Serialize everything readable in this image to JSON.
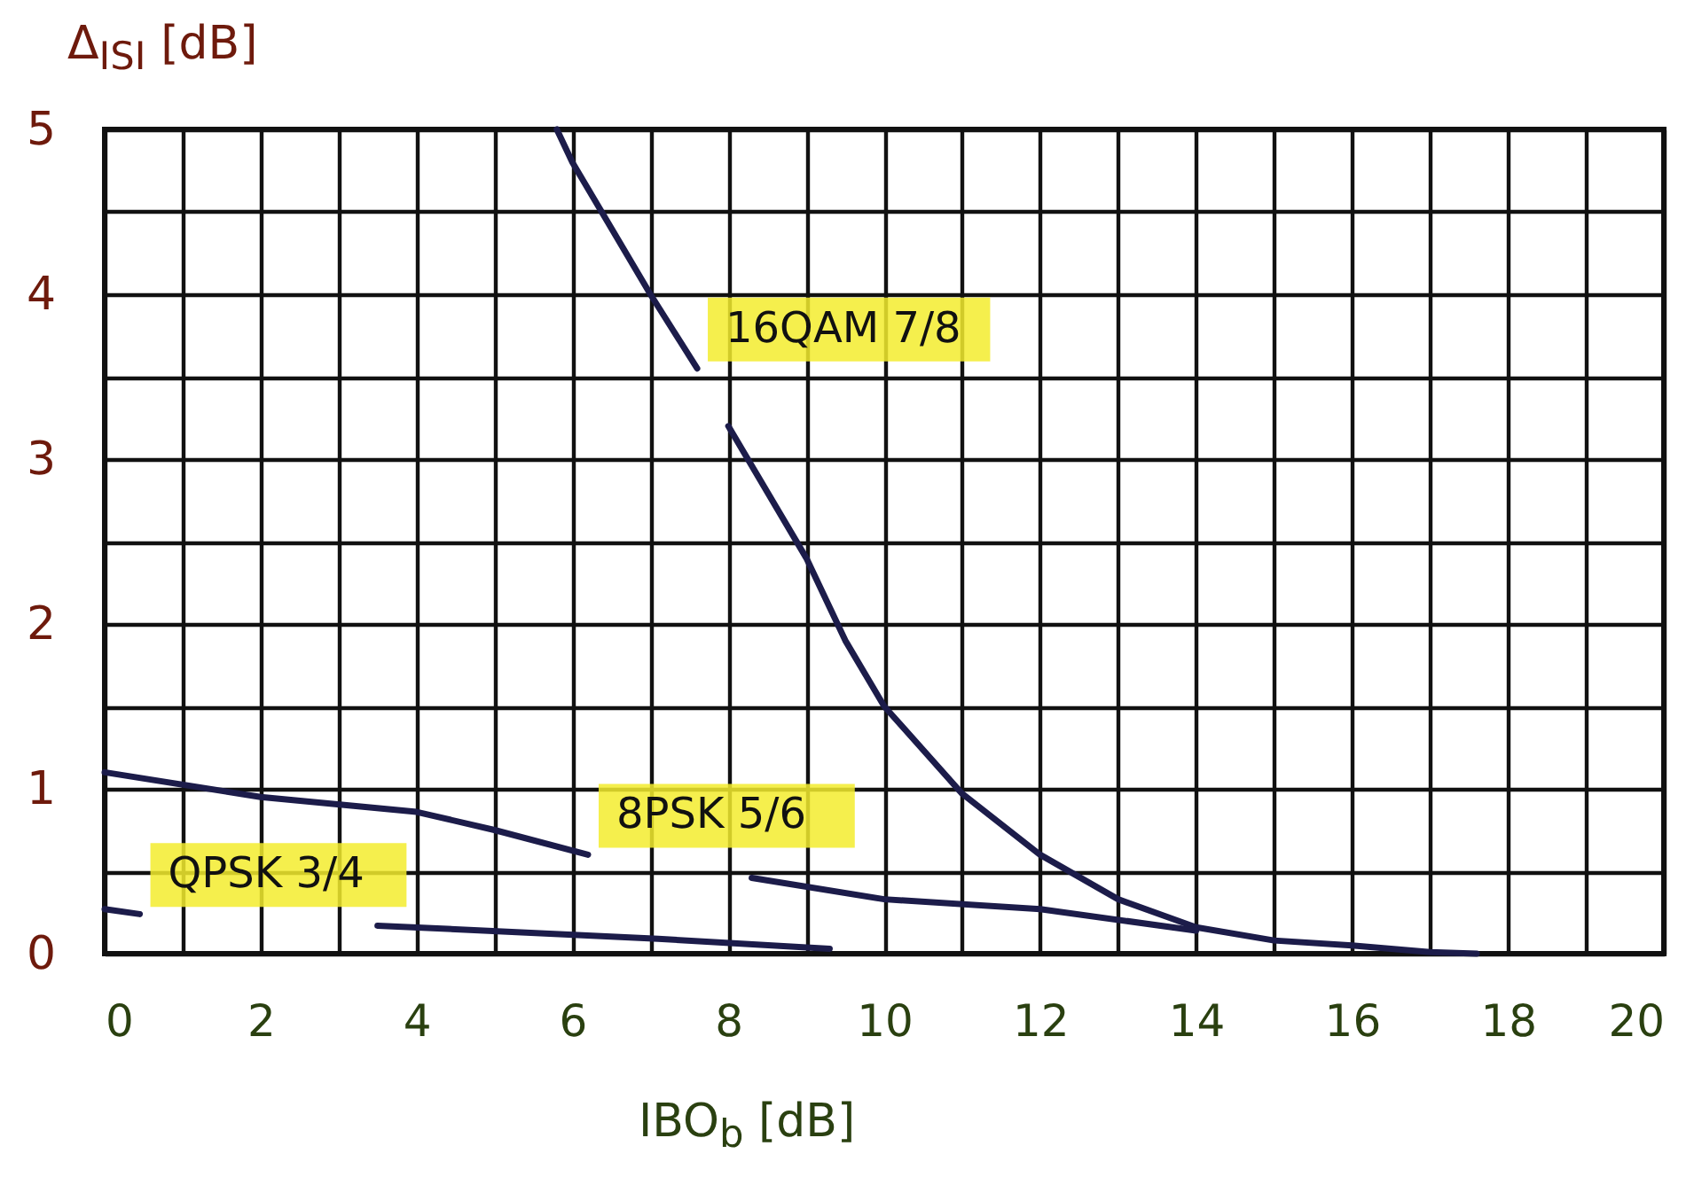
{
  "chart_data": {
    "type": "line",
    "xlabel": "IBO$_{b}$ [dB]",
    "ylabel": "Δ$_{ISI}$ [dB]",
    "xlim": [
      0,
      20
    ],
    "ylim": [
      0,
      5
    ],
    "xticks": [
      0,
      {
        "value": 1,
        "label": null
      },
      2,
      {
        "value": 3,
        "label": null
      },
      4,
      {
        "value": 5,
        "label": null
      },
      6,
      {
        "value": 7,
        "label": null
      },
      8,
      {
        "value": 9,
        "label": null
      },
      10,
      {
        "value": 11,
        "label": null
      },
      12,
      {
        "value": 13,
        "label": null
      },
      14,
      {
        "value": 15,
        "label": null
      },
      16,
      {
        "value": 17,
        "label": null
      },
      18,
      {
        "value": 19,
        "label": null
      },
      20
    ],
    "yticks": [
      0,
      {
        "value": 0.5,
        "label": null
      },
      1,
      {
        "value": 1.5,
        "label": null
      },
      2,
      {
        "value": 2.5,
        "label": null
      },
      3,
      {
        "value": 3.5,
        "label": null
      },
      4,
      {
        "value": 4.5,
        "label": null
      },
      5
    ],
    "grid": true,
    "line_style": "solid",
    "marker": "none",
    "series": [
      {
        "name": "16QAM 7/8",
        "color": "#1c1c4a",
        "x": [
          5.8,
          6.0,
          7.0,
          7.6,
          7.8,
          8.0,
          9.0,
          9.5,
          10,
          11,
          12,
          13,
          14,
          15,
          16,
          17,
          17.6
        ],
        "values": [
          5,
          4.8,
          4.0,
          3.55,
          null,
          3.2,
          2.4,
          1.9,
          1.5,
          0.97,
          0.6,
          0.33,
          0.16,
          0.08,
          0.05,
          0.01,
          0
        ]
      },
      {
        "name": "8PSK 5/6",
        "color": "#1c1c4a",
        "x": [
          0,
          2,
          4,
          5,
          6.2,
          7.2,
          8.3,
          10,
          12,
          14
        ],
        "values": [
          1.1,
          0.95,
          0.86,
          0.75,
          0.6,
          null,
          0.46,
          0.33,
          0.27,
          0.14
        ]
      },
      {
        "name": "QPSK 3/4",
        "color": "#1c1c4a",
        "x": [
          0,
          0.45,
          2,
          3.5,
          7.1,
          9.3
        ],
        "values": [
          0.27,
          0.24,
          null,
          0.17,
          0.09,
          0.03
        ]
      }
    ]
  }
}
